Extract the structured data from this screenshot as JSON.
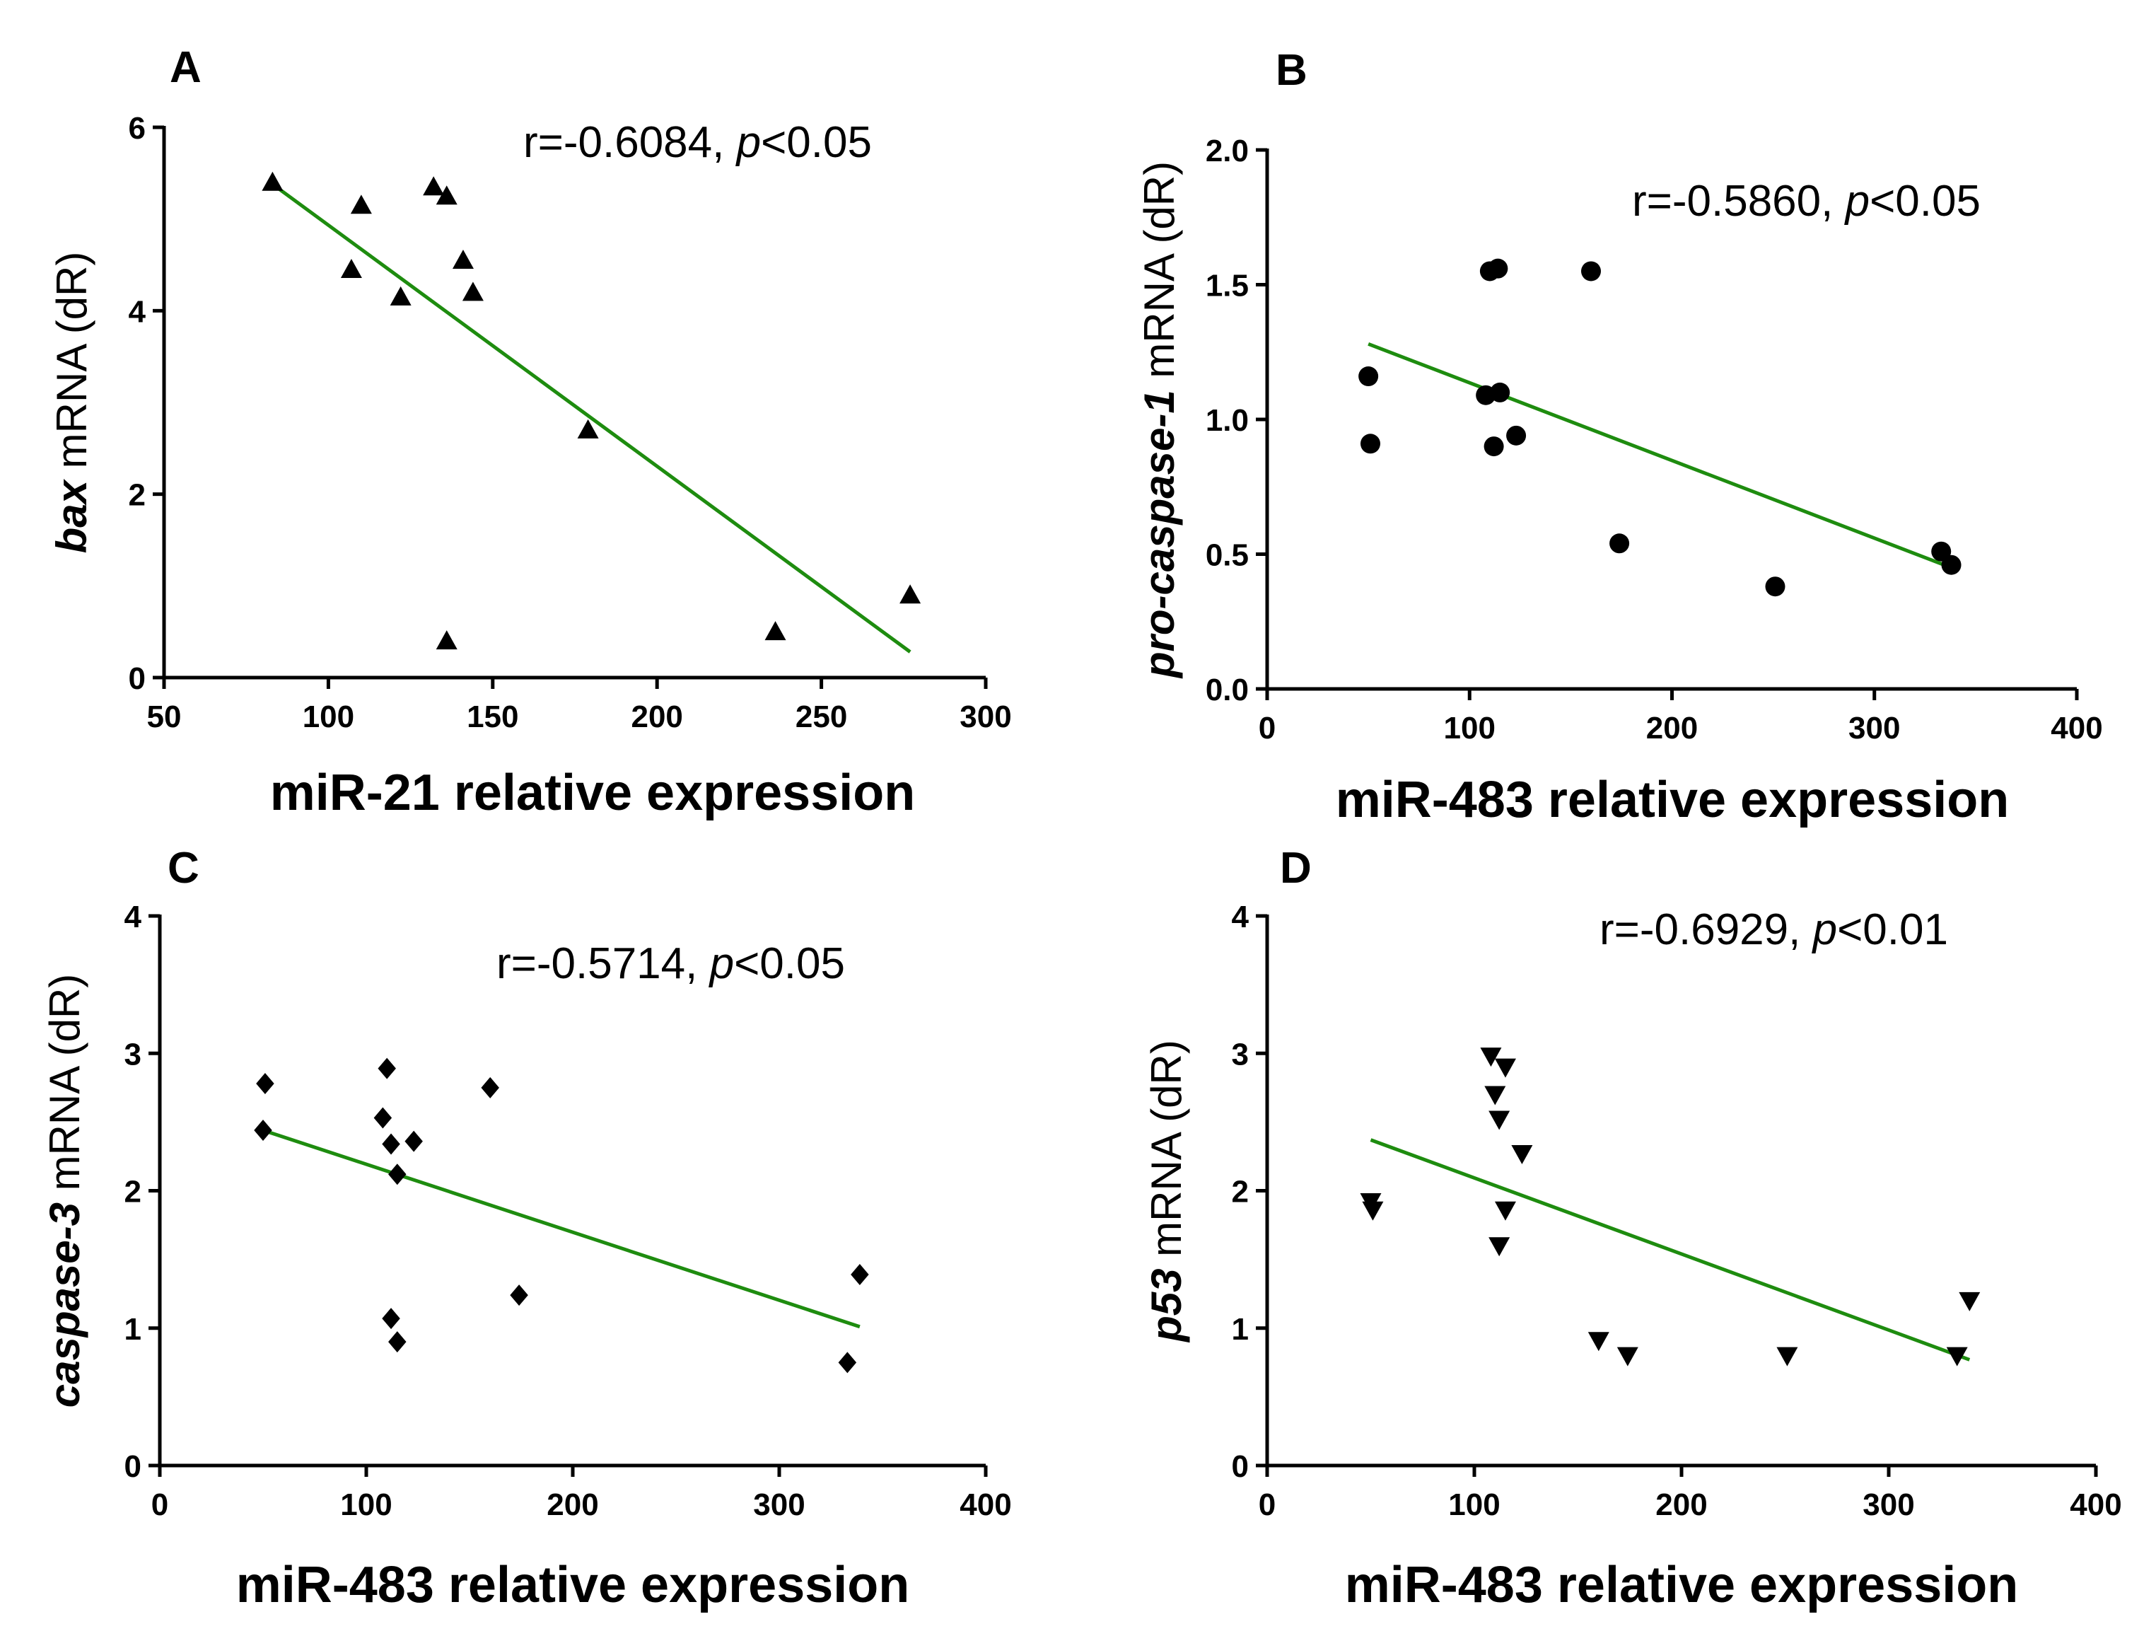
{
  "fit_color": "#1e8c0f",
  "marker_color": "#000000",
  "chart_data": [
    {
      "panel": "A",
      "type": "scatter",
      "marker": "triangle-up",
      "xlabel": "miR-21 relative expression",
      "ylabel_italic": "bax",
      "ylabel_rest": " mRNA (dR)",
      "xlim": [
        50,
        300
      ],
      "ylim": [
        0,
        6
      ],
      "xticks": [
        50,
        100,
        150,
        200,
        250,
        300
      ],
      "yticks": [
        0,
        2,
        4,
        6
      ],
      "ytick_labels": [
        "0",
        "2",
        "4",
        "6"
      ],
      "annotation": {
        "r": "r=-0.6084, ",
        "p_italic": "p",
        "p_rest": "<0.05"
      },
      "points": [
        [
          83,
          5.4
        ],
        [
          107,
          4.45
        ],
        [
          110,
          5.15
        ],
        [
          122,
          4.15
        ],
        [
          132,
          5.35
        ],
        [
          136,
          5.25
        ],
        [
          141,
          4.55
        ],
        [
          144,
          4.2
        ],
        [
          179,
          2.7
        ],
        [
          136,
          0.4
        ],
        [
          236,
          0.5
        ],
        [
          277,
          0.9
        ]
      ],
      "fit": [
        [
          83,
          5.38
        ],
        [
          277,
          0.28
        ]
      ]
    },
    {
      "panel": "B",
      "type": "scatter",
      "marker": "circle",
      "xlabel": "miR-483 relative expression",
      "ylabel_italic": "pro-caspase-1",
      "ylabel_rest": " mRNA (dR)",
      "xlim": [
        0,
        400
      ],
      "ylim": [
        0,
        2
      ],
      "xticks": [
        0,
        100,
        200,
        300,
        400
      ],
      "yticks": [
        0,
        0.5,
        1,
        1.5,
        2
      ],
      "ytick_labels": [
        "0.0",
        "0.5",
        "1.0",
        "1.5",
        "2.0"
      ],
      "annotation": {
        "r": "r=-0.5860, ",
        "p_italic": "p",
        "p_rest": "<0.05"
      },
      "points": [
        [
          50,
          1.16
        ],
        [
          51,
          0.91
        ],
        [
          108,
          1.09
        ],
        [
          110,
          1.55
        ],
        [
          114,
          1.56
        ],
        [
          115,
          1.1
        ],
        [
          112,
          0.9
        ],
        [
          123,
          0.94
        ],
        [
          160,
          1.55
        ],
        [
          174,
          0.54
        ],
        [
          251,
          0.38
        ],
        [
          333,
          0.51
        ],
        [
          338,
          0.46
        ]
      ],
      "fit": [
        [
          50,
          1.28
        ],
        [
          338,
          0.45
        ]
      ]
    },
    {
      "panel": "C",
      "type": "scatter",
      "marker": "diamond",
      "xlabel": "miR-483 relative expression",
      "ylabel_italic": "caspase-3",
      "ylabel_rest": " mRNA (dR)",
      "xlim": [
        0,
        400
      ],
      "ylim": [
        0,
        4
      ],
      "xticks": [
        0,
        100,
        200,
        300,
        400
      ],
      "yticks": [
        0,
        1,
        2,
        3,
        4
      ],
      "ytick_labels": [
        "0",
        "1",
        "2",
        "3",
        "4"
      ],
      "annotation": {
        "r": "r=-0.5714, ",
        "p_italic": "p",
        "p_rest": "<0.05"
      },
      "points": [
        [
          51,
          2.78
        ],
        [
          50,
          2.44
        ],
        [
          110,
          2.89
        ],
        [
          108,
          2.53
        ],
        [
          112,
          2.34
        ],
        [
          115,
          2.12
        ],
        [
          123,
          2.36
        ],
        [
          160,
          2.75
        ],
        [
          112,
          1.07
        ],
        [
          115,
          0.9
        ],
        [
          174,
          1.24
        ],
        [
          333,
          0.75
        ],
        [
          339,
          1.39
        ]
      ],
      "fit": [
        [
          50,
          2.44
        ],
        [
          339,
          1.01
        ]
      ]
    },
    {
      "panel": "D",
      "type": "scatter",
      "marker": "triangle-down",
      "xlabel": "miR-483 relative expression",
      "ylabel_italic": "p53",
      "ylabel_rest": " mRNA (dR)",
      "xlim": [
        0,
        400
      ],
      "ylim": [
        0,
        4
      ],
      "xticks": [
        0,
        100,
        200,
        300,
        400
      ],
      "yticks": [
        0,
        1,
        2,
        3,
        4
      ],
      "ytick_labels": [
        "0",
        "1",
        "2",
        "3",
        "4"
      ],
      "annotation": {
        "r": "r=-0.6929, ",
        "p_italic": "p",
        "p_rest": "<0.01"
      },
      "points": [
        [
          50,
          1.92
        ],
        [
          51,
          1.86
        ],
        [
          108,
          2.98
        ],
        [
          110,
          2.7
        ],
        [
          112,
          2.52
        ],
        [
          115,
          2.9
        ],
        [
          115,
          1.86
        ],
        [
          112,
          1.6
        ],
        [
          123,
          2.27
        ],
        [
          160,
          0.91
        ],
        [
          174,
          0.8
        ],
        [
          251,
          0.8
        ],
        [
          333,
          0.8
        ],
        [
          339,
          1.2
        ]
      ],
      "fit": [
        [
          50,
          2.37
        ],
        [
          339,
          0.77
        ]
      ]
    }
  ]
}
